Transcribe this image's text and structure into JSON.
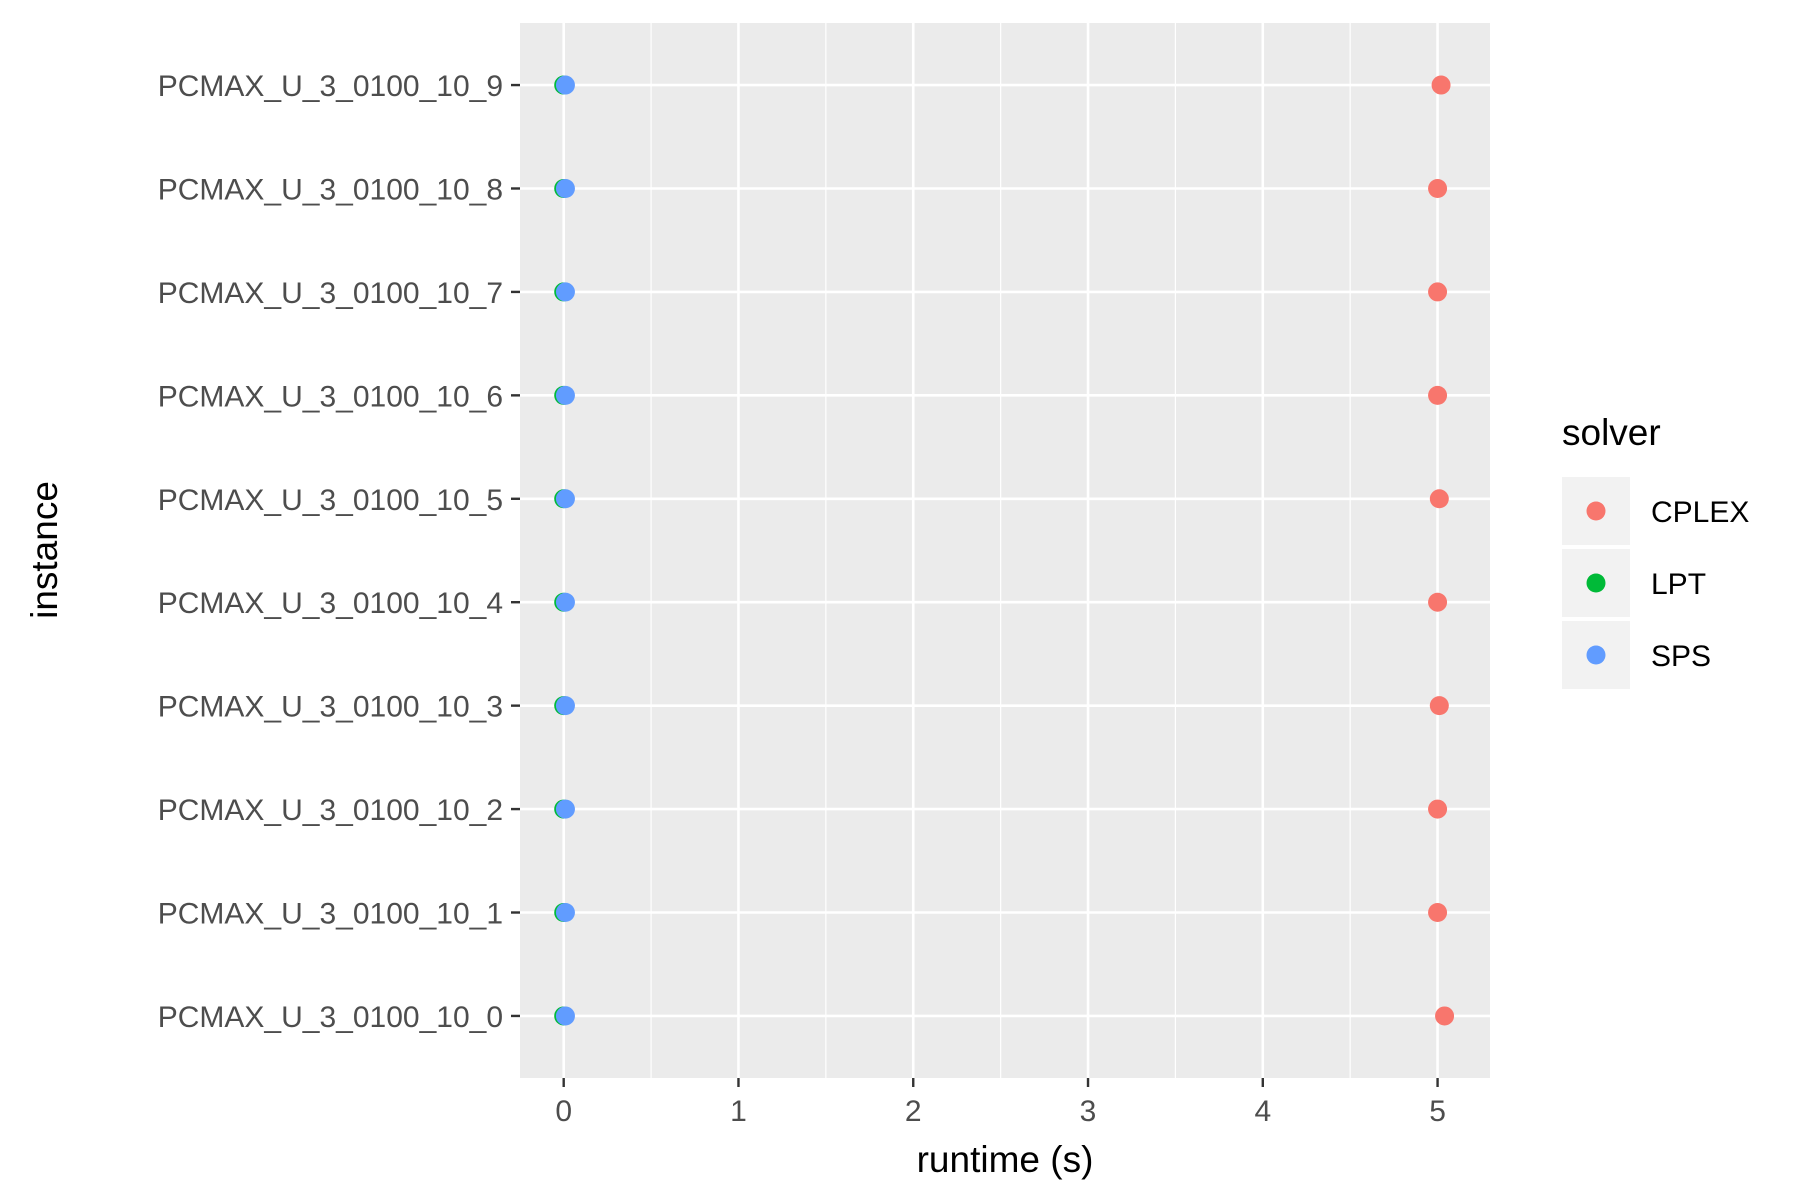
{
  "chart_data": {
    "type": "scatter",
    "title": "",
    "xlabel": "runtime (s)",
    "ylabel": "instance",
    "xlim": [
      -0.25,
      5.3
    ],
    "x_ticks": [
      "0",
      "1",
      "2",
      "3",
      "4",
      "5"
    ],
    "categories": [
      "PCMAX_U_3_0100_10_0",
      "PCMAX_U_3_0100_10_1",
      "PCMAX_U_3_0100_10_2",
      "PCMAX_U_3_0100_10_3",
      "PCMAX_U_3_0100_10_4",
      "PCMAX_U_3_0100_10_5",
      "PCMAX_U_3_0100_10_6",
      "PCMAX_U_3_0100_10_7",
      "PCMAX_U_3_0100_10_8",
      "PCMAX_U_3_0100_10_9"
    ],
    "legend": {
      "title": "solver",
      "position": "right"
    },
    "grid": true,
    "series": [
      {
        "name": "CPLEX",
        "color": "#F8766D",
        "values": [
          5.04,
          5.0,
          5.0,
          5.01,
          5.0,
          5.01,
          5.0,
          5.0,
          5.0,
          5.02
        ]
      },
      {
        "name": "LPT",
        "color": "#00BA38",
        "values": [
          0.0,
          0.0,
          0.0,
          0.0,
          0.0,
          0.0,
          0.0,
          0.0,
          0.0,
          0.0
        ]
      },
      {
        "name": "SPS",
        "color": "#619CFF",
        "values": [
          0.01,
          0.01,
          0.01,
          0.01,
          0.01,
          0.01,
          0.01,
          0.01,
          0.01,
          0.01
        ]
      }
    ]
  }
}
